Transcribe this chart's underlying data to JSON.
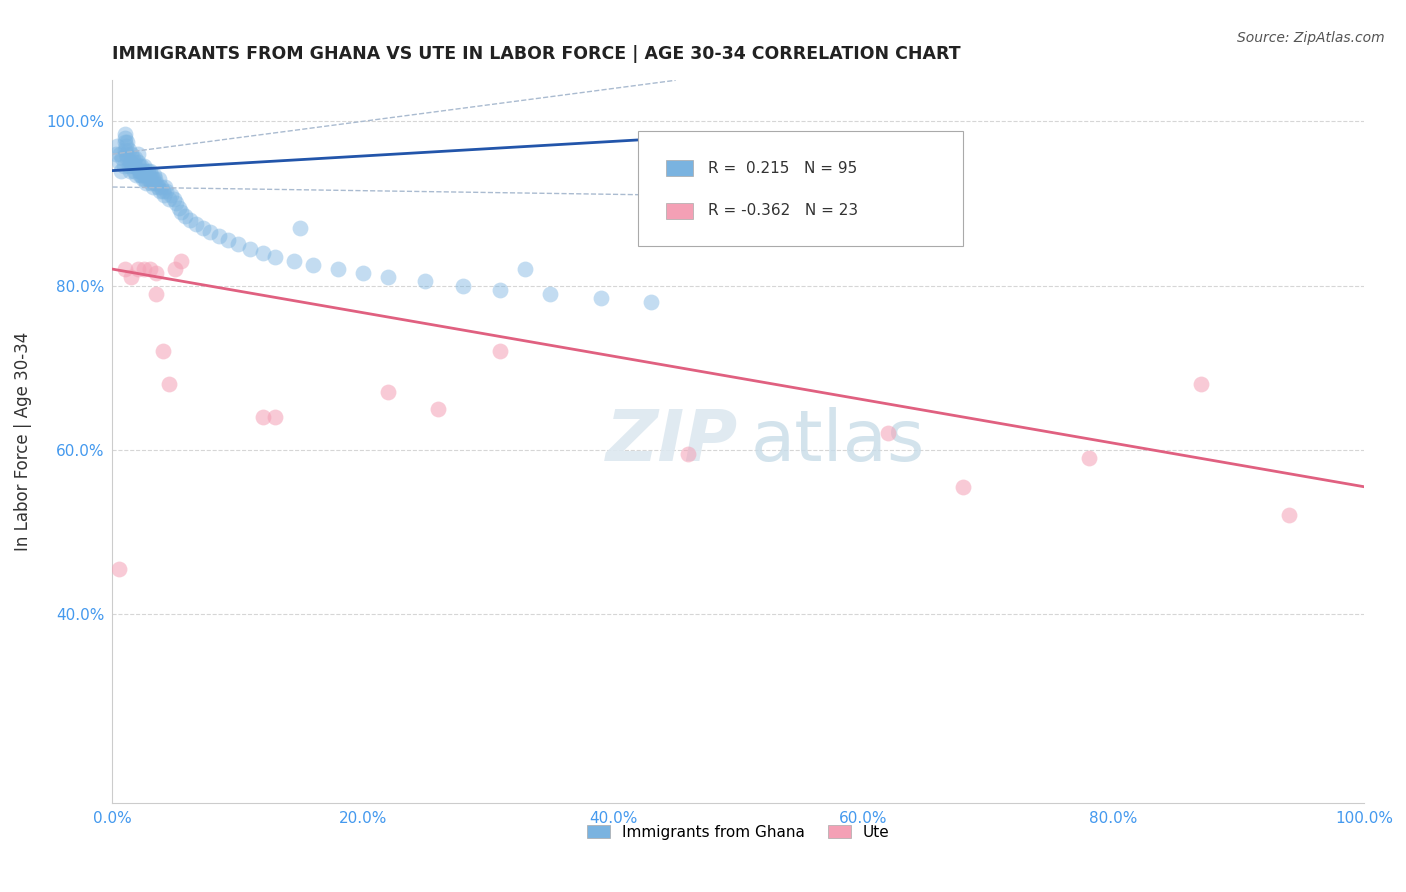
{
  "title": "IMMIGRANTS FROM GHANA VS UTE IN LABOR FORCE | AGE 30-34 CORRELATION CHART",
  "source": "Source: ZipAtlas.com",
  "ylabel": "In Labor Force | Age 30-34",
  "legend_label1": "Immigrants from Ghana",
  "legend_label2": "Ute",
  "r1": 0.215,
  "n1": 95,
  "r2": -0.362,
  "n2": 23,
  "xlim": [
    0.0,
    1.0
  ],
  "ylim": [
    0.17,
    1.05
  ],
  "xticks": [
    0.0,
    0.2,
    0.4,
    0.6,
    0.8,
    1.0
  ],
  "yticks": [
    0.4,
    0.6,
    0.8,
    1.0
  ],
  "ytick_labels": [
    "40.0%",
    "60.0%",
    "80.0%",
    "100.0%"
  ],
  "xtick_labels": [
    "0.0%",
    "20.0%",
    "40.0%",
    "60.0%",
    "80.0%",
    "100.0%"
  ],
  "color_ghana": "#7ab3e0",
  "color_ute": "#f4a0b5",
  "trendline_ghana": "#2255aa",
  "trendline_ute": "#e06080",
  "ci_color": "#aabbd0",
  "background_color": "#ffffff",
  "grid_color": "#cccccc",
  "ghana_x": [
    0.003,
    0.004,
    0.005,
    0.006,
    0.007,
    0.008,
    0.009,
    0.01,
    0.01,
    0.01,
    0.01,
    0.011,
    0.011,
    0.012,
    0.012,
    0.013,
    0.013,
    0.014,
    0.014,
    0.015,
    0.015,
    0.016,
    0.016,
    0.017,
    0.017,
    0.018,
    0.018,
    0.019,
    0.02,
    0.02,
    0.021,
    0.021,
    0.022,
    0.022,
    0.023,
    0.023,
    0.024,
    0.024,
    0.025,
    0.025,
    0.026,
    0.026,
    0.027,
    0.027,
    0.028,
    0.028,
    0.029,
    0.03,
    0.03,
    0.031,
    0.031,
    0.032,
    0.032,
    0.033,
    0.033,
    0.034,
    0.035,
    0.036,
    0.037,
    0.038,
    0.039,
    0.04,
    0.041,
    0.042,
    0.043,
    0.045,
    0.047,
    0.049,
    0.051,
    0.053,
    0.055,
    0.058,
    0.062,
    0.067,
    0.072,
    0.078,
    0.085,
    0.092,
    0.1,
    0.11,
    0.12,
    0.13,
    0.145,
    0.16,
    0.18,
    0.2,
    0.22,
    0.25,
    0.28,
    0.31,
    0.35,
    0.39,
    0.43,
    0.33,
    0.15
  ],
  "ghana_y": [
    0.96,
    0.97,
    0.95,
    0.96,
    0.94,
    0.955,
    0.945,
    0.965,
    0.975,
    0.985,
    0.98,
    0.97,
    0.96,
    0.975,
    0.955,
    0.965,
    0.945,
    0.95,
    0.94,
    0.96,
    0.95,
    0.955,
    0.945,
    0.94,
    0.95,
    0.945,
    0.955,
    0.935,
    0.95,
    0.96,
    0.94,
    0.945,
    0.935,
    0.94,
    0.945,
    0.935,
    0.93,
    0.94,
    0.935,
    0.945,
    0.93,
    0.94,
    0.935,
    0.925,
    0.93,
    0.94,
    0.935,
    0.93,
    0.94,
    0.925,
    0.935,
    0.93,
    0.92,
    0.935,
    0.925,
    0.93,
    0.925,
    0.92,
    0.93,
    0.915,
    0.92,
    0.915,
    0.91,
    0.92,
    0.915,
    0.905,
    0.91,
    0.905,
    0.9,
    0.895,
    0.89,
    0.885,
    0.88,
    0.875,
    0.87,
    0.865,
    0.86,
    0.855,
    0.85,
    0.845,
    0.84,
    0.835,
    0.83,
    0.825,
    0.82,
    0.815,
    0.81,
    0.805,
    0.8,
    0.795,
    0.79,
    0.785,
    0.78,
    0.82,
    0.87
  ],
  "ute_x": [
    0.005,
    0.01,
    0.015,
    0.02,
    0.025,
    0.03,
    0.035,
    0.035,
    0.04,
    0.045,
    0.05,
    0.055,
    0.12,
    0.13,
    0.22,
    0.26,
    0.31,
    0.46,
    0.62,
    0.68,
    0.78,
    0.87,
    0.94
  ],
  "ute_y": [
    0.455,
    0.82,
    0.81,
    0.82,
    0.82,
    0.82,
    0.79,
    0.815,
    0.72,
    0.68,
    0.82,
    0.83,
    0.64,
    0.64,
    0.67,
    0.65,
    0.72,
    0.595,
    0.62,
    0.555,
    0.59,
    0.68,
    0.52
  ],
  "ghana_trend_x0": 0.0,
  "ghana_trend_y0": 0.94,
  "ghana_trend_x1": 0.45,
  "ghana_trend_y1": 0.98,
  "ute_trend_x0": 0.0,
  "ute_trend_y0": 0.82,
  "ute_trend_x1": 1.0,
  "ute_trend_y1": 0.555
}
